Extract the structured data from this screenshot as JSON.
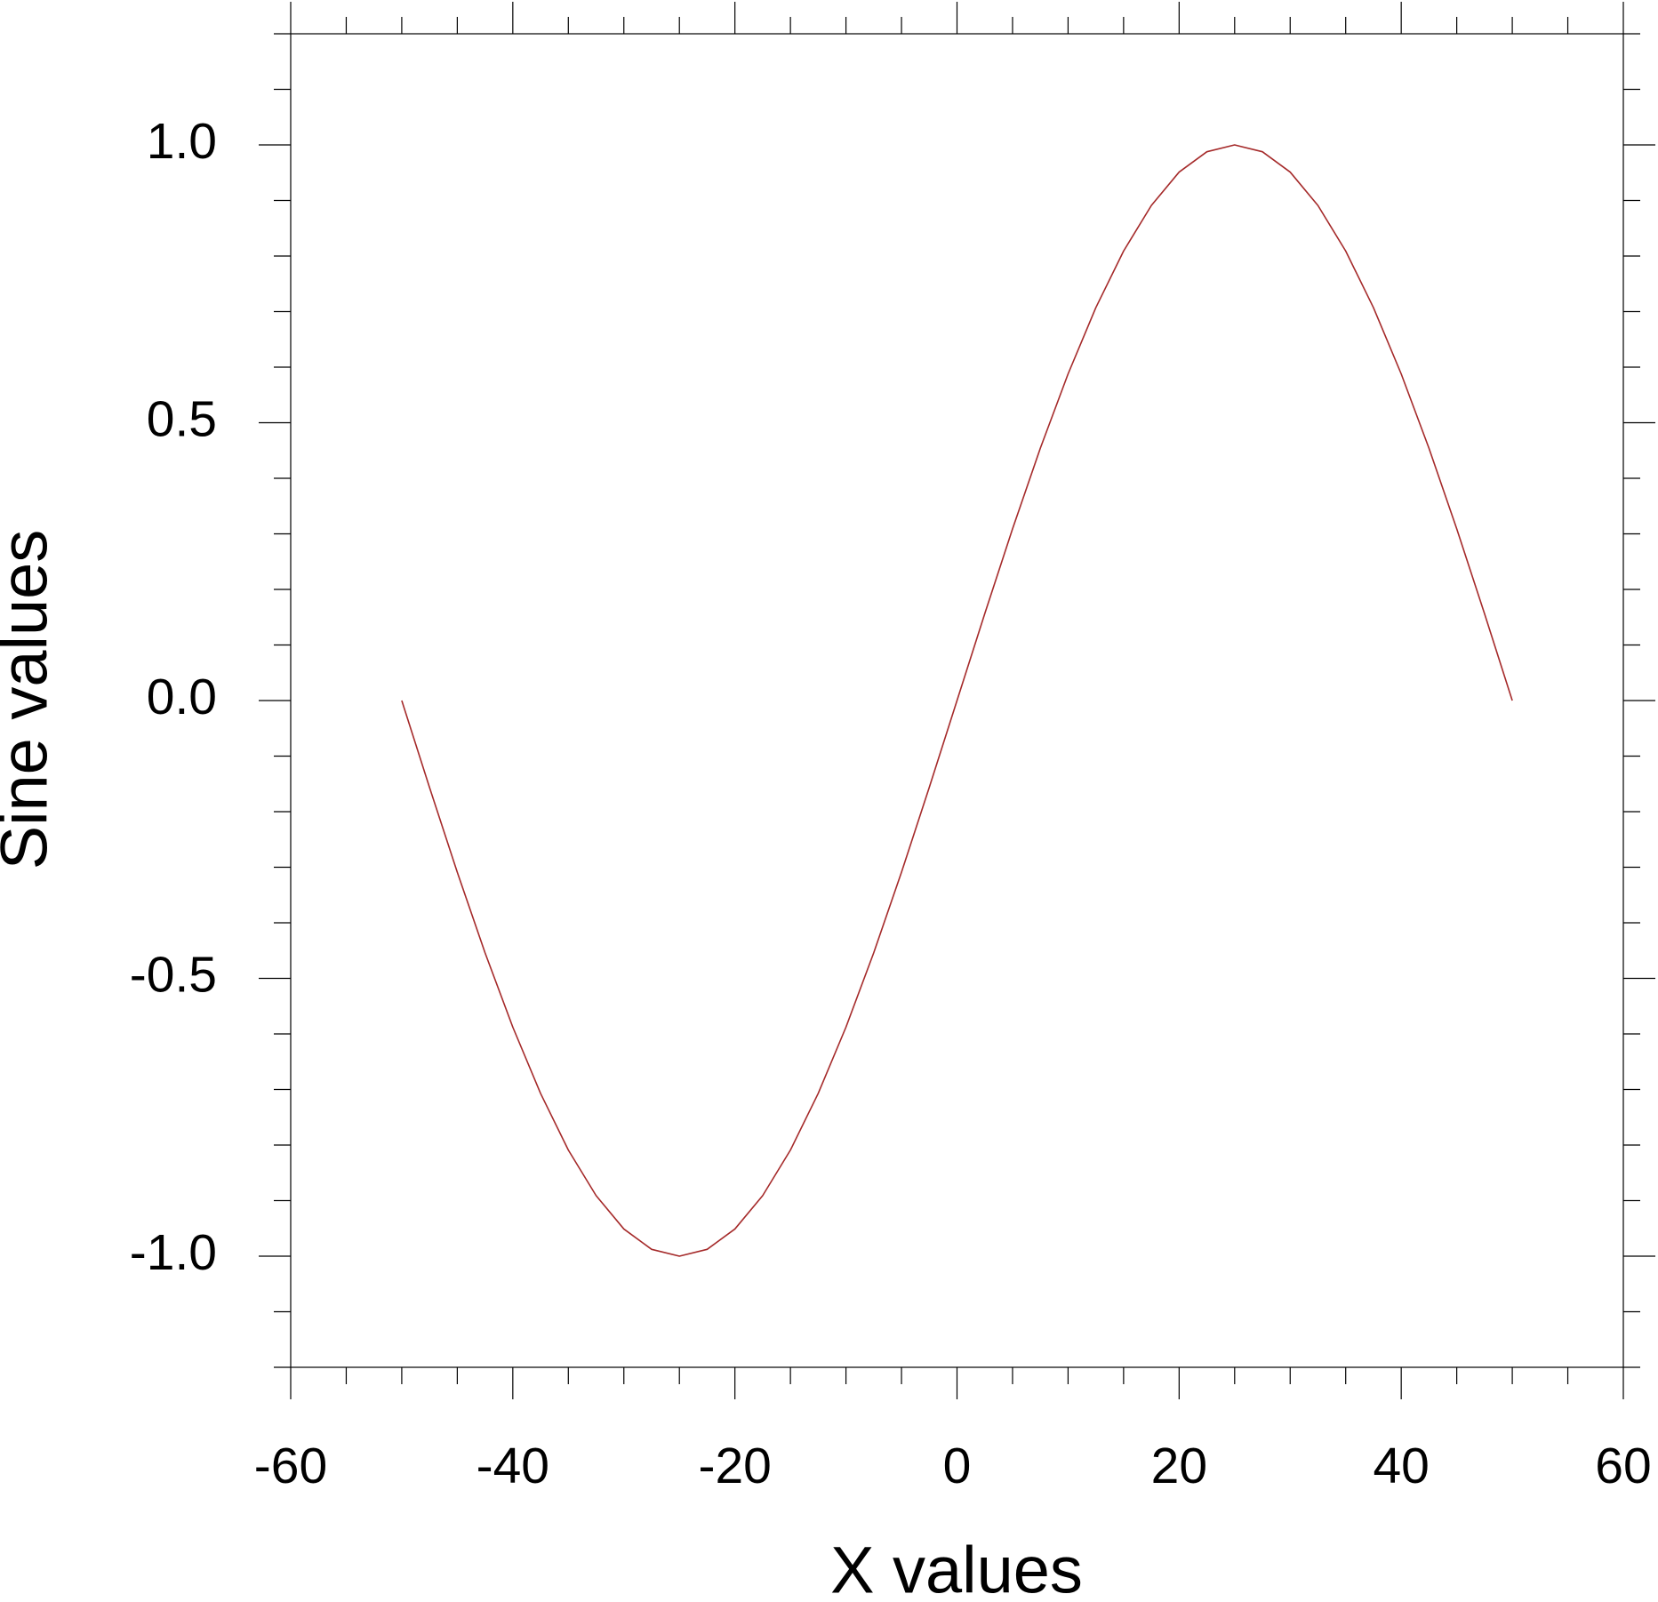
{
  "chart_data": {
    "type": "line",
    "xlabel": "X values",
    "ylabel": "Sine values",
    "x": [
      -50,
      -47.5,
      -45,
      -42.5,
      -40,
      -37.5,
      -35,
      -32.5,
      -30,
      -27.5,
      -25,
      -22.5,
      -20,
      -17.5,
      -15,
      -12.5,
      -10,
      -7.5,
      -5,
      -2.5,
      0,
      2.5,
      5,
      7.5,
      10,
      12.5,
      15,
      17.5,
      20,
      22.5,
      25,
      27.5,
      30,
      32.5,
      35,
      37.5,
      40,
      42.5,
      45,
      47.5,
      50
    ],
    "series": [
      {
        "color": "#a52a2a",
        "values": [
          0,
          -0.1564,
          -0.309,
          -0.454,
          -0.5878,
          -0.7071,
          -0.809,
          -0.891,
          -0.9511,
          -0.9877,
          -1,
          -0.9877,
          -0.9511,
          -0.891,
          -0.809,
          -0.7071,
          -0.5878,
          -0.454,
          -0.309,
          -0.1564,
          0,
          0.1564,
          0.309,
          0.454,
          0.5878,
          0.7071,
          0.809,
          0.891,
          0.9511,
          0.9877,
          1,
          0.9877,
          0.9511,
          0.891,
          0.809,
          0.7071,
          0.5878,
          0.454,
          0.309,
          0.1564,
          0
        ]
      }
    ],
    "xlim": [
      -60,
      60
    ],
    "xticks": [
      -60,
      -40,
      -20,
      0,
      20,
      40,
      60
    ],
    "ylim": [
      -1.2,
      1.2
    ],
    "yticks": [
      {
        "value": -1,
        "label": "-1.0"
      },
      -0.5,
      {
        "value": 0,
        "label": "0.0"
      },
      0.5,
      {
        "value": 1,
        "label": "1.0"
      }
    ],
    "grid": false
  }
}
